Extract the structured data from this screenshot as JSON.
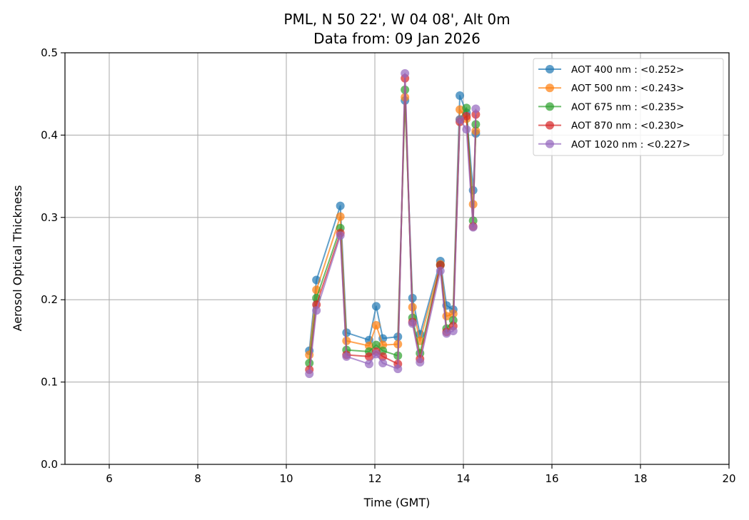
{
  "chart_data": {
    "type": "line",
    "title": "PML, N 50 22', W 04 08', Alt 0m",
    "subtitle": "Data from: 09 Jan 2026",
    "xlabel": "Time (GMT)",
    "ylabel": "Aerosol Optical Thickness",
    "xlim": [
      5,
      20
    ],
    "ylim": [
      0.0,
      0.5
    ],
    "xticks": [
      6,
      8,
      10,
      12,
      14,
      16,
      18,
      20
    ],
    "xtick_labels": [
      "6",
      "8",
      "10",
      "12",
      "14",
      "16",
      "18",
      "20"
    ],
    "yticks": [
      0.0,
      0.1,
      0.2,
      0.3,
      0.4,
      0.5
    ],
    "ytick_labels": [
      "0.0",
      "0.1",
      "0.2",
      "0.3",
      "0.4",
      "0.5"
    ],
    "grid": true,
    "legend_position": "top-right",
    "x": [
      10.52,
      10.68,
      11.22,
      11.36,
      11.87,
      12.03,
      12.18,
      12.52,
      12.68,
      12.85,
      13.02,
      13.48,
      13.62,
      13.77,
      13.92,
      14.07,
      14.22,
      14.28
    ],
    "series": [
      {
        "name": "AOT 400 nm : <0.252>",
        "color": "#1f77b4",
        "values": [
          0.138,
          0.224,
          0.314,
          0.16,
          0.151,
          0.192,
          0.153,
          0.155,
          0.442,
          0.202,
          0.158,
          0.247,
          0.193,
          0.188,
          0.448,
          0.427,
          0.333,
          0.402
        ]
      },
      {
        "name": "AOT 500 nm : <0.243>",
        "color": "#ff7f0e",
        "values": [
          0.133,
          0.212,
          0.301,
          0.15,
          0.144,
          0.169,
          0.145,
          0.146,
          0.446,
          0.191,
          0.15,
          0.243,
          0.18,
          0.183,
          0.431,
          0.42,
          0.316,
          0.405
        ]
      },
      {
        "name": "AOT 675 nm : <0.235>",
        "color": "#2ca02c",
        "values": [
          0.123,
          0.202,
          0.287,
          0.139,
          0.137,
          0.145,
          0.138,
          0.132,
          0.455,
          0.178,
          0.135,
          0.242,
          0.165,
          0.175,
          0.419,
          0.433,
          0.296,
          0.413
        ]
      },
      {
        "name": "AOT 870 nm : <0.230>",
        "color": "#d62728",
        "values": [
          0.115,
          0.194,
          0.281,
          0.133,
          0.131,
          0.137,
          0.131,
          0.122,
          0.469,
          0.173,
          0.128,
          0.242,
          0.161,
          0.168,
          0.416,
          0.423,
          0.289,
          0.425
        ]
      },
      {
        "name": "AOT 1020 nm : <0.227>",
        "color": "#9467bd",
        "values": [
          0.11,
          0.187,
          0.278,
          0.131,
          0.122,
          0.134,
          0.123,
          0.116,
          0.475,
          0.171,
          0.124,
          0.235,
          0.159,
          0.162,
          0.419,
          0.407,
          0.288,
          0.432
        ]
      }
    ]
  }
}
